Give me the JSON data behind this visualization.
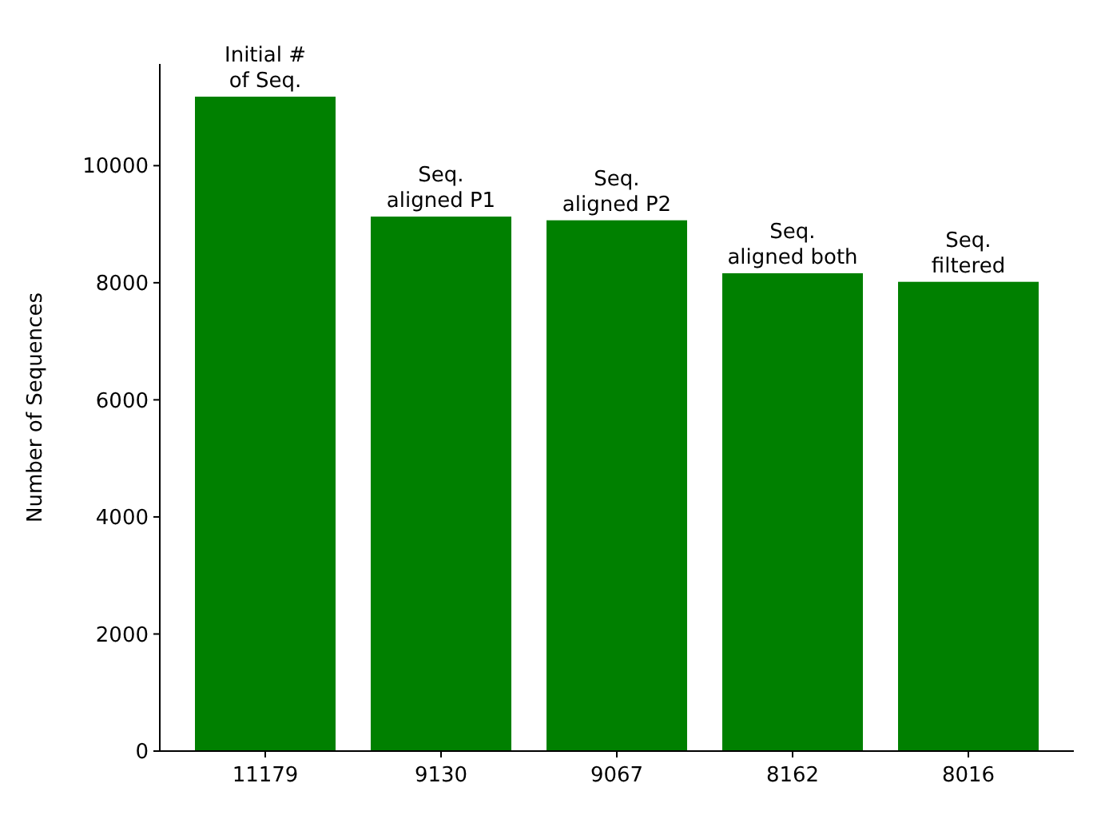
{
  "chart_data": {
    "type": "bar",
    "ylabel": "Number of Sequences",
    "categories": [
      "11179",
      "9130",
      "9067",
      "8162",
      "8016"
    ],
    "values": [
      11179,
      9130,
      9067,
      8162,
      8016
    ],
    "color": "#008000",
    "ylim": [
      0,
      11738
    ],
    "yticks": [
      0,
      2000,
      4000,
      6000,
      8000,
      10000
    ],
    "grid": false,
    "annotations": [
      {
        "text": "Initial #\nof Seq.",
        "x": "11179",
        "y": 11179
      },
      {
        "text": "Seq.\naligned P1",
        "x": "9130",
        "y": 9130
      },
      {
        "text": "Seq.\naligned P2",
        "x": "9067",
        "y": 9067
      },
      {
        "text": "Seq.\naligned both",
        "x": "8162",
        "y": 8162
      },
      {
        "text": "Seq.\nfiltered",
        "x": "8016",
        "y": 8016
      }
    ]
  }
}
